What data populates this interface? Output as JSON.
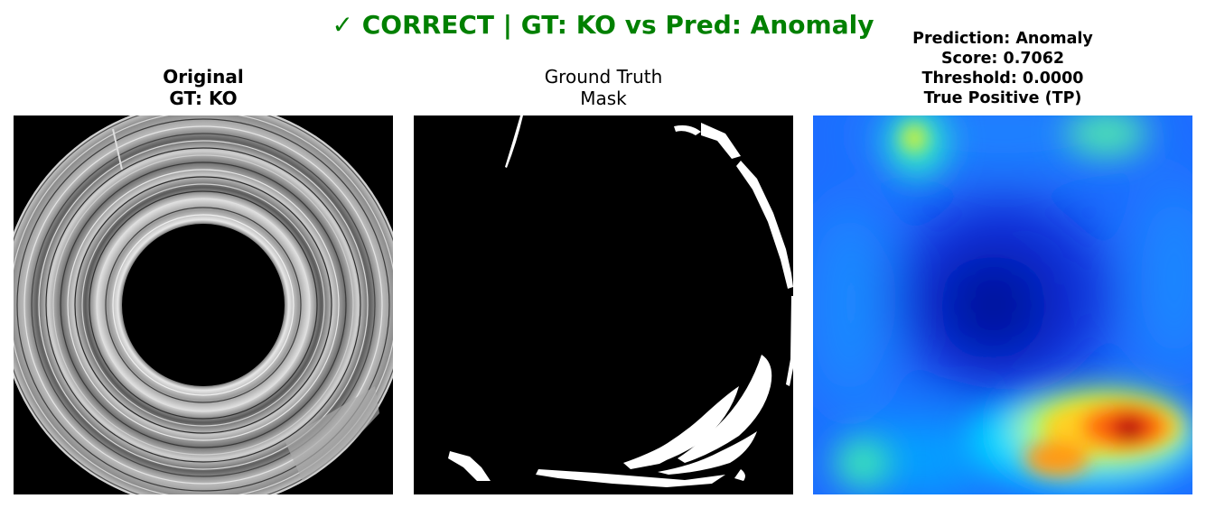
{
  "figure": {
    "suptitle": "✓ CORRECT | GT: KO vs Pred: Anomaly",
    "status_color": "#008000"
  },
  "panels": {
    "original": {
      "title_line1": "Original",
      "title_line2": "GT: KO"
    },
    "ground_truth": {
      "title_line1": "Ground Truth",
      "title_line2": "Mask"
    },
    "prediction": {
      "title_line1": "Prediction: Anomaly",
      "title_line2": "Score: 0.7062",
      "title_line3": "Threshold: 0.0000",
      "title_line4": "True Positive (TP)",
      "colormap": "jet"
    }
  }
}
